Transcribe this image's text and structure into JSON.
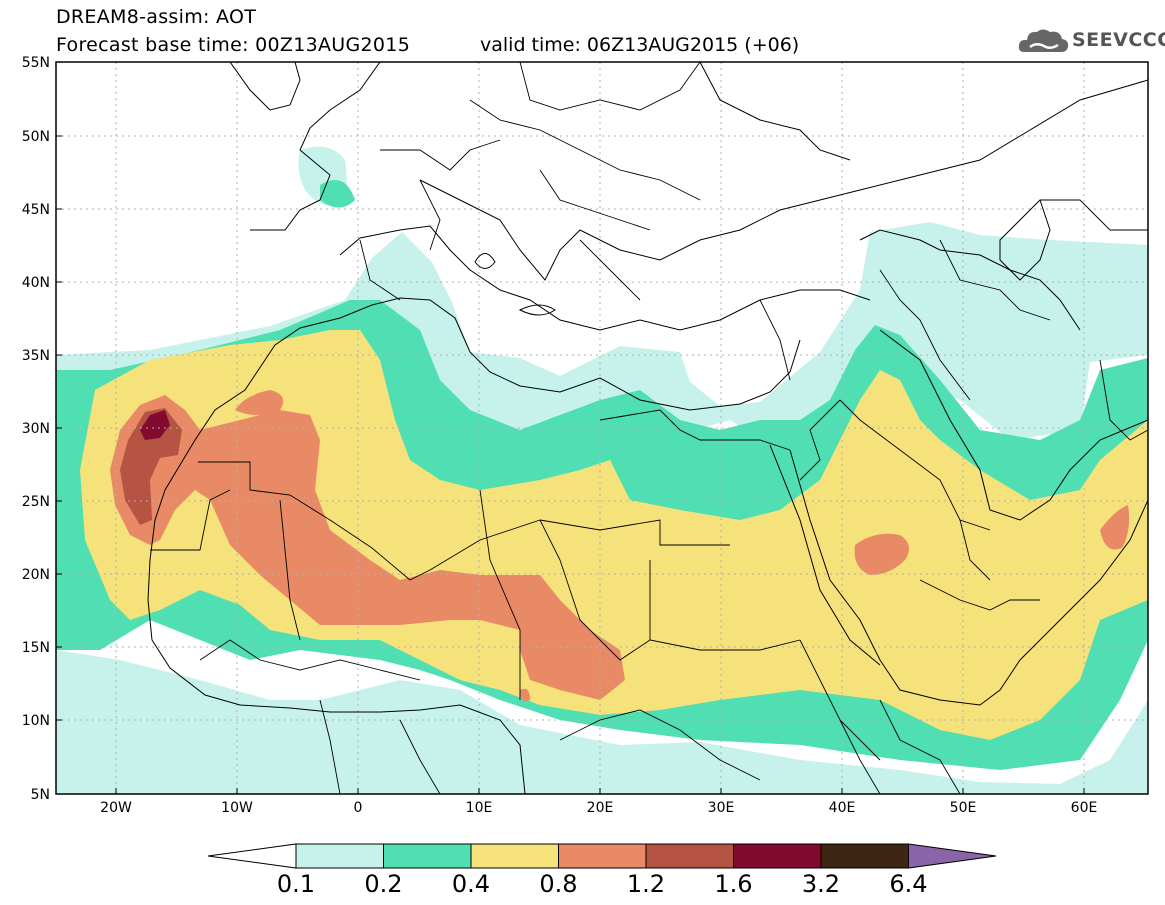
{
  "header": {
    "model_title": "DREAM8-assim: AOT",
    "base_time": "Forecast base time: 00Z13AUG2015",
    "valid_time": "valid time: 06Z13AUG2015 (+06)",
    "logo_text": "SEEVCCC",
    "logo_icon": "cloud-icon"
  },
  "axes": {
    "lat_labels": [
      "55N",
      "50N",
      "45N",
      "40N",
      "35N",
      "30N",
      "25N",
      "20N",
      "15N",
      "10N",
      "5N"
    ],
    "lon_labels": [
      "20W",
      "10W",
      "0",
      "10E",
      "20E",
      "30E",
      "40E",
      "50E",
      "60E"
    ]
  },
  "colorbar": {
    "colors": [
      "#c6f2eb",
      "#4fdfb3",
      "#f5e27b",
      "#e88a65",
      "#b65444",
      "#820a2e",
      "#3e2514",
      "#8a63a8"
    ],
    "labels": [
      "0.1",
      "0.2",
      "0.4",
      "0.8",
      "1.2",
      "1.6",
      "3.2",
      "6.4"
    ]
  }
}
